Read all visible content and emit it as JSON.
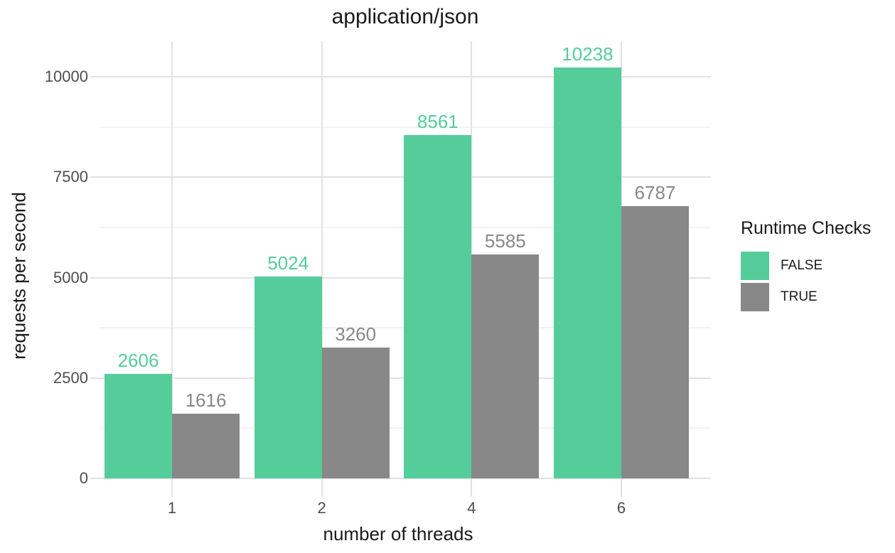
{
  "chart_data": {
    "type": "bar",
    "title": "application/json",
    "xlabel": "number of threads",
    "ylabel": "requests per second",
    "categories": [
      "1",
      "2",
      "4",
      "6"
    ],
    "series": [
      {
        "name": "FALSE",
        "color": "#55CD9A",
        "values": [
          2606,
          5024,
          8561,
          10238
        ]
      },
      {
        "name": "TRUE",
        "color": "#888888",
        "values": [
          1616,
          3260,
          5585,
          6787
        ]
      }
    ],
    "bar_value_labels": true,
    "ylim": [
      0,
      10890
    ],
    "yticks": [
      0,
      2500,
      5000,
      7500,
      10000
    ],
    "yticks_minor": [
      1250,
      3750,
      6250,
      8750
    ],
    "grid": "horizontal major+minor, vertical major at category centers",
    "legend": {
      "title": "Runtime Checks",
      "position": "right",
      "labels": [
        "FALSE",
        "TRUE"
      ]
    },
    "style": {
      "background_color": "#FFFFFF",
      "grid_major_color": "#E2E2E2",
      "grid_minor_color": "#F2F2F2",
      "axis_tick_color": "#E2E2E2",
      "tick_label_color": "#4D4D4D",
      "title_color": "#1A1A1A",
      "axis_title_color": "#1A1A1A",
      "legend_text_color": "#1A1A1A"
    }
  }
}
